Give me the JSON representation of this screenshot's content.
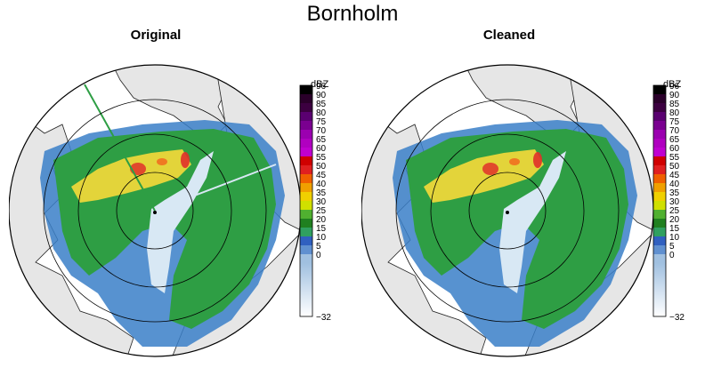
{
  "title": "Bornholm",
  "panels": [
    {
      "subtitle": "Original"
    },
    {
      "subtitle": "Cleaned"
    }
  ],
  "colorbar": {
    "unit": "dBZ",
    "ticks": [
      "96",
      "90",
      "85",
      "80",
      "75",
      "70",
      "65",
      "60",
      "55",
      "50",
      "45",
      "40",
      "35",
      "30",
      "25",
      "20",
      "15",
      "10",
      "5",
      "0",
      "−32"
    ],
    "colors": [
      "#000000",
      "#2a002a",
      "#3c0040",
      "#5a0070",
      "#7a0090",
      "#9b00b0",
      "#b000c0",
      "#c000d0",
      "#d00000",
      "#e02020",
      "#f06000",
      "#f0a000",
      "#f0d000",
      "#d0e000",
      "#50b030",
      "#208020",
      "#30a060",
      "#3060c0",
      "#6090d0",
      "#a0c0e0",
      "#d8e8f4"
    ]
  },
  "colors": {
    "background": "#ffffff",
    "land": "#e6e6e6",
    "sea": "#ffffff",
    "weak_echo": "#3a7fc8",
    "moderate_echo": "#2e9e44",
    "strong_echo": "#e3d43a",
    "heavy_echo": "#e0302a"
  }
}
